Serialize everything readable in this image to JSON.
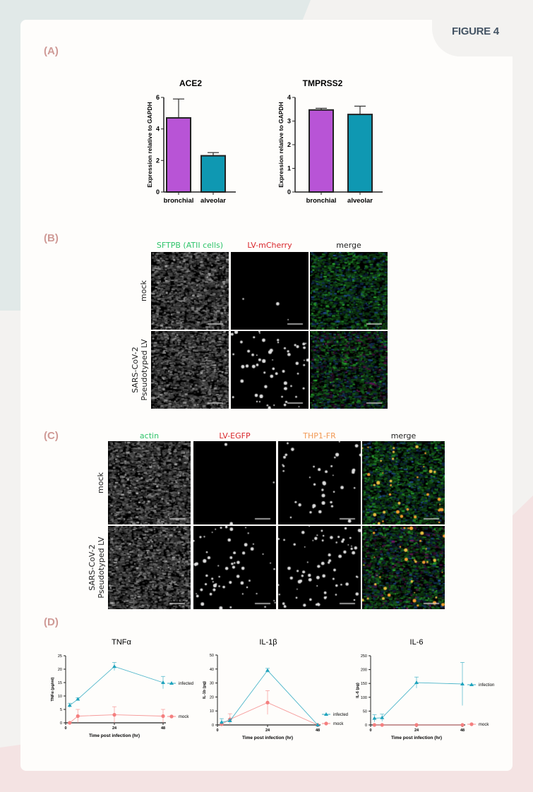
{
  "figure_title": "FIGURE 4",
  "panels": {
    "A": {
      "label": "(A)"
    },
    "B": {
      "label": "(B)",
      "columns": [
        "SFTPB (ATII cells)",
        "LV-mCherry",
        "merge"
      ],
      "column_colors": [
        "#2ec46a",
        "#d9262b",
        "#222222"
      ],
      "rows": [
        "mock",
        "SARS-CoV-2\nPseudotyped LV"
      ]
    },
    "C": {
      "label": "(C)",
      "columns": [
        "actin",
        "LV-EGFP",
        "THP1-FR",
        "merge"
      ],
      "column_colors": [
        "#2ec46a",
        "#d9262b",
        "#f29a55",
        "#222222"
      ],
      "rows": [
        "mock",
        "SARS-CoV-2\nPseudotyped LV"
      ]
    },
    "D": {
      "label": "(D)"
    }
  },
  "chart_data": [
    {
      "type": "bar",
      "title": "ACE2",
      "ylabel": "Expression relative to GAPDH",
      "xlabel": "",
      "categories": [
        "bronchial",
        "alveolar"
      ],
      "values": [
        4.7,
        2.3
      ],
      "errors": [
        1.2,
        0.2
      ],
      "colors": [
        "#b854d6",
        "#0f98b2"
      ],
      "ylim": [
        0,
        6
      ],
      "yticks": [
        0,
        2,
        4,
        6
      ]
    },
    {
      "type": "bar",
      "title": "TMPRSS2",
      "ylabel": "Expression relative to GAPDH",
      "xlabel": "",
      "categories": [
        "bronchial",
        "alveolar"
      ],
      "values": [
        3.47,
        3.28
      ],
      "errors": [
        0.07,
        0.35
      ],
      "colors": [
        "#b854d6",
        "#0f98b2"
      ],
      "ylim": [
        0,
        4
      ],
      "yticks": [
        0,
        1,
        2,
        3,
        4
      ]
    },
    {
      "type": "line",
      "title": "TNFα",
      "ylabel": "TNFα (pg/ml)",
      "xlabel": "Time post infection (hr)",
      "xlim": [
        0,
        48
      ],
      "xticks": [
        0,
        24,
        48
      ],
      "ylim": [
        0,
        25
      ],
      "yticks": [
        0,
        5,
        10,
        15,
        20,
        25
      ],
      "series": [
        {
          "name": "infected",
          "color": "#1ea3bd",
          "marker": "triangle",
          "x": [
            2,
            6,
            24,
            48
          ],
          "y": [
            6.5,
            8.8,
            21,
            15
          ],
          "err": [
            0.8,
            0.5,
            1.5,
            2.3
          ]
        },
        {
          "name": "mock",
          "color": "#f47f7f",
          "marker": "circle",
          "x": [
            2,
            6,
            24,
            48
          ],
          "y": [
            0,
            2.5,
            3,
            2.5
          ],
          "err": [
            0,
            2.5,
            3,
            2.5
          ]
        }
      ]
    },
    {
      "type": "line",
      "title": "IL-1β",
      "ylabel": "IL-1b (pg)",
      "xlabel": "Time post infection (hr)",
      "xlim": [
        0,
        48
      ],
      "xticks": [
        0,
        24,
        48
      ],
      "ylim": [
        0,
        50
      ],
      "yticks": [
        0,
        10,
        20,
        30,
        40,
        50
      ],
      "series": [
        {
          "name": "infected",
          "color": "#1ea3bd",
          "marker": "triangle",
          "x": [
            2,
            6,
            24,
            48
          ],
          "y": [
            2,
            3,
            39,
            0
          ],
          "err": [
            2.5,
            1,
            1.5,
            0
          ]
        },
        {
          "name": "mock",
          "color": "#f47f7f",
          "marker": "circle",
          "x": [
            2,
            6,
            24,
            48
          ],
          "y": [
            0.5,
            4,
            16,
            0
          ],
          "err": [
            0,
            4,
            8.5,
            0
          ]
        }
      ]
    },
    {
      "type": "line",
      "title": "IL-6",
      "ylabel": "IL-6 (pg)",
      "xlabel": "Time post infection (hr)",
      "xlim": [
        0,
        48
      ],
      "xticks": [
        0,
        24,
        48
      ],
      "ylim": [
        0,
        250
      ],
      "yticks": [
        0,
        50,
        100,
        150,
        200,
        250
      ],
      "series": [
        {
          "name": "infection",
          "color": "#1ea3bd",
          "marker": "triangle",
          "x": [
            2,
            6,
            24,
            48
          ],
          "y": [
            24,
            26,
            153,
            148
          ],
          "err": [
            13,
            13,
            20,
            78
          ]
        },
        {
          "name": "mock",
          "color": "#f47f7f",
          "marker": "circle",
          "x": [
            2,
            6,
            24,
            48
          ],
          "y": [
            0,
            0,
            0,
            0
          ],
          "err": [
            0,
            0,
            0,
            0
          ]
        }
      ]
    }
  ]
}
